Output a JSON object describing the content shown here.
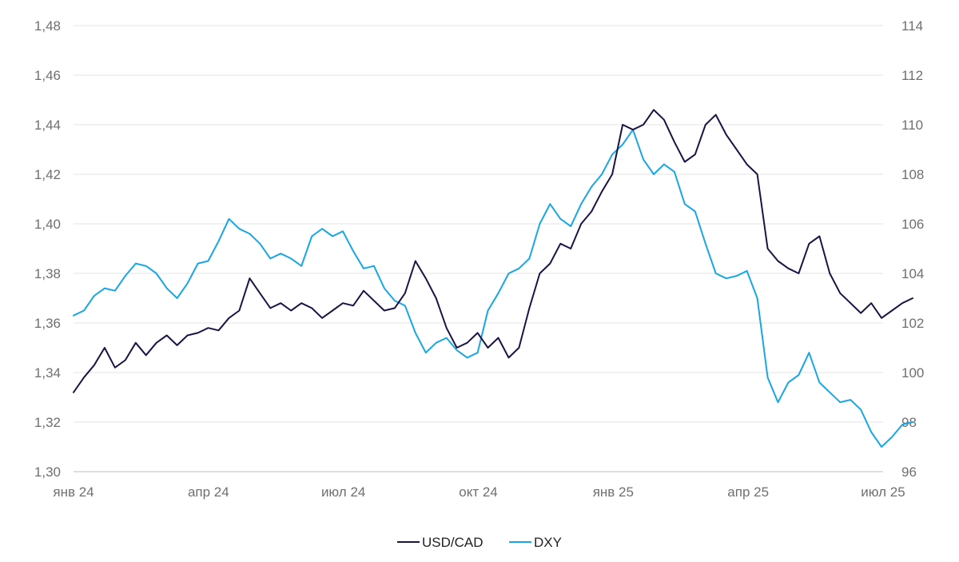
{
  "chart_data": {
    "type": "line",
    "title": "",
    "xlabel": "",
    "ylabel": "",
    "grid": true,
    "legend_position": "bottom-center",
    "x_tick_labels": [
      "янв 24",
      "апр 24",
      "июл 24",
      "окт 24",
      "янв 25",
      "апр 25",
      "июл 25"
    ],
    "y_left": {
      "ticks": [
        "1,30",
        "1,32",
        "1,34",
        "1,36",
        "1,38",
        "1,40",
        "1,42",
        "1,44",
        "1,46",
        "1,48"
      ],
      "range": [
        1.3,
        1.48
      ]
    },
    "y_right": {
      "ticks": [
        "96",
        "98",
        "100",
        "102",
        "104",
        "106",
        "108",
        "110",
        "112",
        "114"
      ],
      "range": [
        96,
        114
      ]
    },
    "series": [
      {
        "name": "USD/CAD",
        "axis": "left",
        "color": "#1a1446",
        "points": [
          [
            "2024-01-01",
            1.332
          ],
          [
            "2024-01-08",
            1.338
          ],
          [
            "2024-01-15",
            1.343
          ],
          [
            "2024-01-22",
            1.35
          ],
          [
            "2024-01-29",
            1.342
          ],
          [
            "2024-02-05",
            1.345
          ],
          [
            "2024-02-12",
            1.352
          ],
          [
            "2024-02-19",
            1.347
          ],
          [
            "2024-02-26",
            1.352
          ],
          [
            "2024-03-04",
            1.355
          ],
          [
            "2024-03-11",
            1.351
          ],
          [
            "2024-03-18",
            1.355
          ],
          [
            "2024-03-25",
            1.356
          ],
          [
            "2024-04-01",
            1.358
          ],
          [
            "2024-04-08",
            1.357
          ],
          [
            "2024-04-15",
            1.362
          ],
          [
            "2024-04-22",
            1.365
          ],
          [
            "2024-04-29",
            1.378
          ],
          [
            "2024-05-06",
            1.372
          ],
          [
            "2024-05-13",
            1.366
          ],
          [
            "2024-05-20",
            1.368
          ],
          [
            "2024-05-27",
            1.365
          ],
          [
            "2024-06-03",
            1.368
          ],
          [
            "2024-06-10",
            1.366
          ],
          [
            "2024-06-17",
            1.362
          ],
          [
            "2024-06-24",
            1.365
          ],
          [
            "2024-07-01",
            1.368
          ],
          [
            "2024-07-08",
            1.367
          ],
          [
            "2024-07-15",
            1.373
          ],
          [
            "2024-07-22",
            1.369
          ],
          [
            "2024-07-29",
            1.365
          ],
          [
            "2024-08-05",
            1.366
          ],
          [
            "2024-08-12",
            1.372
          ],
          [
            "2024-08-19",
            1.385
          ],
          [
            "2024-08-26",
            1.378
          ],
          [
            "2024-09-02",
            1.37
          ],
          [
            "2024-09-09",
            1.358
          ],
          [
            "2024-09-16",
            1.35
          ],
          [
            "2024-09-23",
            1.352
          ],
          [
            "2024-09-30",
            1.356
          ],
          [
            "2024-10-07",
            1.35
          ],
          [
            "2024-10-14",
            1.354
          ],
          [
            "2024-10-21",
            1.346
          ],
          [
            "2024-10-28",
            1.35
          ],
          [
            "2024-11-04",
            1.366
          ],
          [
            "2024-11-11",
            1.38
          ],
          [
            "2024-11-18",
            1.384
          ],
          [
            "2024-11-25",
            1.392
          ],
          [
            "2024-12-02",
            1.39
          ],
          [
            "2024-12-09",
            1.4
          ],
          [
            "2024-12-16",
            1.405
          ],
          [
            "2024-12-23",
            1.413
          ],
          [
            "2024-12-30",
            1.42
          ],
          [
            "2025-01-06",
            1.44
          ],
          [
            "2025-01-13",
            1.438
          ],
          [
            "2025-01-20",
            1.44
          ],
          [
            "2025-01-27",
            1.446
          ],
          [
            "2025-02-03",
            1.442
          ],
          [
            "2025-02-10",
            1.433
          ],
          [
            "2025-02-17",
            1.425
          ],
          [
            "2025-02-24",
            1.428
          ],
          [
            "2025-03-03",
            1.44
          ],
          [
            "2025-03-10",
            1.444
          ],
          [
            "2025-03-17",
            1.436
          ],
          [
            "2025-03-24",
            1.43
          ],
          [
            "2025-03-31",
            1.424
          ],
          [
            "2025-04-07",
            1.42
          ],
          [
            "2025-04-14",
            1.39
          ],
          [
            "2025-04-21",
            1.385
          ],
          [
            "2025-04-28",
            1.382
          ],
          [
            "2025-05-05",
            1.38
          ],
          [
            "2025-05-12",
            1.392
          ],
          [
            "2025-05-19",
            1.395
          ],
          [
            "2025-05-26",
            1.38
          ],
          [
            "2025-06-02",
            1.372
          ],
          [
            "2025-06-09",
            1.368
          ],
          [
            "2025-06-16",
            1.364
          ],
          [
            "2025-06-23",
            1.368
          ],
          [
            "2025-06-30",
            1.362
          ],
          [
            "2025-07-07",
            1.365
          ],
          [
            "2025-07-14",
            1.368
          ],
          [
            "2025-07-21",
            1.37
          ]
        ]
      },
      {
        "name": "DXY",
        "axis": "right",
        "color": "#18a6e6",
        "points": [
          [
            "2024-01-01",
            102.3
          ],
          [
            "2024-01-08",
            102.5
          ],
          [
            "2024-01-15",
            103.1
          ],
          [
            "2024-01-22",
            103.4
          ],
          [
            "2024-01-29",
            103.3
          ],
          [
            "2024-02-05",
            103.9
          ],
          [
            "2024-02-12",
            104.4
          ],
          [
            "2024-02-19",
            104.3
          ],
          [
            "2024-02-26",
            104.0
          ],
          [
            "2024-03-04",
            103.4
          ],
          [
            "2024-03-11",
            103.0
          ],
          [
            "2024-03-18",
            103.6
          ],
          [
            "2024-03-25",
            104.4
          ],
          [
            "2024-04-01",
            104.5
          ],
          [
            "2024-04-08",
            105.3
          ],
          [
            "2024-04-15",
            106.2
          ],
          [
            "2024-04-22",
            105.8
          ],
          [
            "2024-04-29",
            105.6
          ],
          [
            "2024-05-06",
            105.2
          ],
          [
            "2024-05-13",
            104.6
          ],
          [
            "2024-05-20",
            104.8
          ],
          [
            "2024-05-27",
            104.6
          ],
          [
            "2024-06-03",
            104.3
          ],
          [
            "2024-06-10",
            105.5
          ],
          [
            "2024-06-17",
            105.8
          ],
          [
            "2024-06-24",
            105.5
          ],
          [
            "2024-07-01",
            105.7
          ],
          [
            "2024-07-08",
            104.9
          ],
          [
            "2024-07-15",
            104.2
          ],
          [
            "2024-07-22",
            104.3
          ],
          [
            "2024-07-29",
            103.4
          ],
          [
            "2024-08-05",
            102.9
          ],
          [
            "2024-08-12",
            102.7
          ],
          [
            "2024-08-19",
            101.6
          ],
          [
            "2024-08-26",
            100.8
          ],
          [
            "2024-09-02",
            101.2
          ],
          [
            "2024-09-09",
            101.4
          ],
          [
            "2024-09-16",
            100.9
          ],
          [
            "2024-09-23",
            100.6
          ],
          [
            "2024-09-30",
            100.8
          ],
          [
            "2024-10-07",
            102.5
          ],
          [
            "2024-10-14",
            103.2
          ],
          [
            "2024-10-21",
            104.0
          ],
          [
            "2024-10-28",
            104.2
          ],
          [
            "2024-11-04",
            104.6
          ],
          [
            "2024-11-11",
            106.0
          ],
          [
            "2024-11-18",
            106.8
          ],
          [
            "2024-11-25",
            106.2
          ],
          [
            "2024-12-02",
            105.9
          ],
          [
            "2024-12-09",
            106.8
          ],
          [
            "2024-12-16",
            107.5
          ],
          [
            "2024-12-23",
            108.0
          ],
          [
            "2024-12-30",
            108.8
          ],
          [
            "2025-01-06",
            109.2
          ],
          [
            "2025-01-13",
            109.8
          ],
          [
            "2025-01-20",
            108.6
          ],
          [
            "2025-01-27",
            108.0
          ],
          [
            "2025-02-03",
            108.4
          ],
          [
            "2025-02-10",
            108.1
          ],
          [
            "2025-02-17",
            106.8
          ],
          [
            "2025-02-24",
            106.5
          ],
          [
            "2025-03-03",
            105.2
          ],
          [
            "2025-03-10",
            104.0
          ],
          [
            "2025-03-17",
            103.8
          ],
          [
            "2025-03-24",
            103.9
          ],
          [
            "2025-03-31",
            104.1
          ],
          [
            "2025-04-07",
            103.0
          ],
          [
            "2025-04-14",
            99.8
          ],
          [
            "2025-04-21",
            98.8
          ],
          [
            "2025-04-28",
            99.6
          ],
          [
            "2025-05-05",
            99.9
          ],
          [
            "2025-05-12",
            100.8
          ],
          [
            "2025-05-19",
            99.6
          ],
          [
            "2025-05-26",
            99.2
          ],
          [
            "2025-06-02",
            98.8
          ],
          [
            "2025-06-09",
            98.9
          ],
          [
            "2025-06-16",
            98.5
          ],
          [
            "2025-06-23",
            97.6
          ],
          [
            "2025-06-30",
            97.0
          ],
          [
            "2025-07-07",
            97.4
          ],
          [
            "2025-07-14",
            97.9
          ],
          [
            "2025-07-21",
            98.0
          ]
        ]
      }
    ]
  }
}
